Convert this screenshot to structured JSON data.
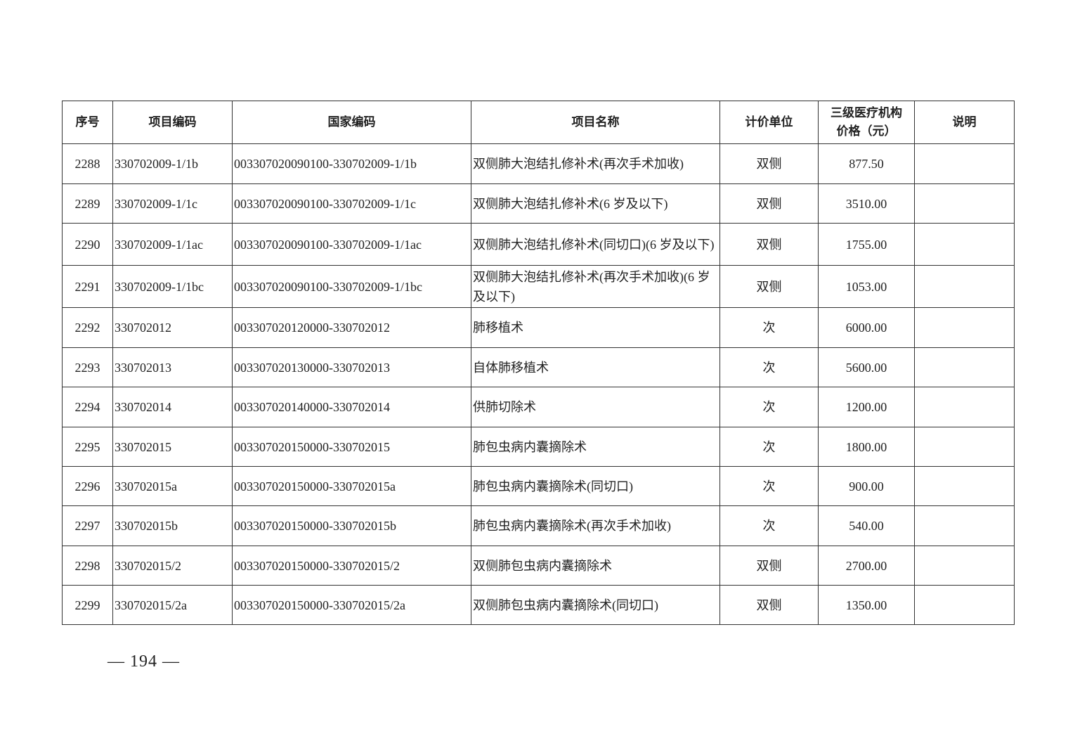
{
  "table": {
    "headers": [
      "序号",
      "项目编码",
      "国家编码",
      "项目名称",
      "计价单位",
      "三级医疗机构价格（元）",
      "说明"
    ],
    "header_price_line1": "三级医疗机构",
    "header_price_line2": "价格（元）",
    "rows": [
      {
        "no": "2288",
        "code": "330702009-1/1b",
        "national": "003307020090100-330702009-1/1b",
        "name": "双侧肺大泡结扎修补术(再次手术加收)",
        "unit": "双侧",
        "price": "877.50",
        "note": ""
      },
      {
        "no": "2289",
        "code": "330702009-1/1c",
        "national": "003307020090100-330702009-1/1c",
        "name": "双侧肺大泡结扎修补术(6 岁及以下)",
        "unit": "双侧",
        "price": "3510.00",
        "note": ""
      },
      {
        "no": "2290",
        "code": "330702009-1/1ac",
        "national": "003307020090100-330702009-1/1ac",
        "name": "双侧肺大泡结扎修补术(同切口)(6 岁及以下)",
        "unit": "双侧",
        "price": "1755.00",
        "note": ""
      },
      {
        "no": "2291",
        "code": "330702009-1/1bc",
        "national": "003307020090100-330702009-1/1bc",
        "name": "双侧肺大泡结扎修补术(再次手术加收)(6 岁及以下)",
        "unit": "双侧",
        "price": "1053.00",
        "note": ""
      },
      {
        "no": "2292",
        "code": "330702012",
        "national": "003307020120000-330702012",
        "name": "肺移植术",
        "unit": "次",
        "price": "6000.00",
        "note": ""
      },
      {
        "no": "2293",
        "code": "330702013",
        "national": "003307020130000-330702013",
        "name": "自体肺移植术",
        "unit": "次",
        "price": "5600.00",
        "note": ""
      },
      {
        "no": "2294",
        "code": "330702014",
        "national": "003307020140000-330702014",
        "name": "供肺切除术",
        "unit": "次",
        "price": "1200.00",
        "note": ""
      },
      {
        "no": "2295",
        "code": "330702015",
        "national": "003307020150000-330702015",
        "name": "肺包虫病内囊摘除术",
        "unit": "次",
        "price": "1800.00",
        "note": ""
      },
      {
        "no": "2296",
        "code": "330702015a",
        "national": "003307020150000-330702015a",
        "name": "肺包虫病内囊摘除术(同切口)",
        "unit": "次",
        "price": "900.00",
        "note": ""
      },
      {
        "no": "2297",
        "code": "330702015b",
        "national": "003307020150000-330702015b",
        "name": "肺包虫病内囊摘除术(再次手术加收)",
        "unit": "次",
        "price": "540.00",
        "note": ""
      },
      {
        "no": "2298",
        "code": "330702015/2",
        "national": "003307020150000-330702015/2",
        "name": "双侧肺包虫病内囊摘除术",
        "unit": "双侧",
        "price": "2700.00",
        "note": ""
      },
      {
        "no": "2299",
        "code": "330702015/2a",
        "national": "003307020150000-330702015/2a",
        "name": "双侧肺包虫病内囊摘除术(同切口)",
        "unit": "双侧",
        "price": "1350.00",
        "note": ""
      }
    ]
  },
  "page_number": "— 194 —"
}
